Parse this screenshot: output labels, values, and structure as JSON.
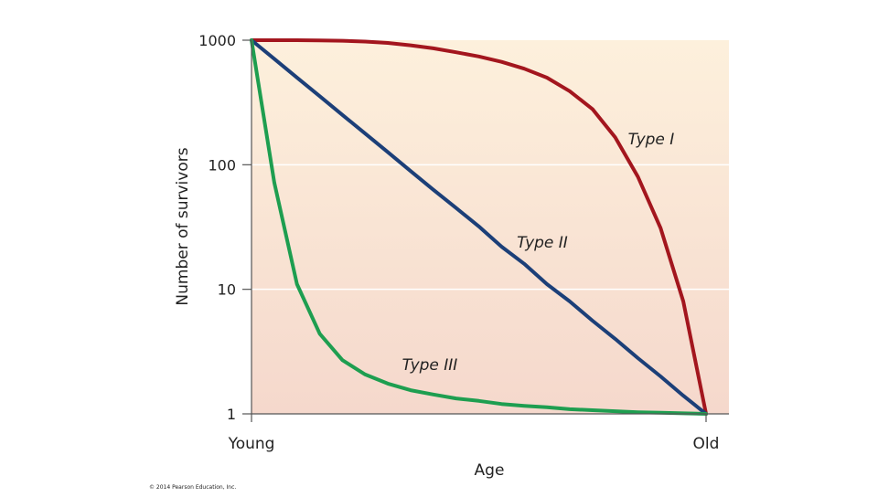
{
  "chart_data": {
    "type": "line",
    "x_label": "Age",
    "y_label": "Number of survivors",
    "credit": "© 2014 Pearson Education, Inc.",
    "categories": [
      "Young",
      null,
      null,
      null,
      null,
      null,
      null,
      null,
      null,
      null,
      null,
      null,
      null,
      null,
      null,
      null,
      null,
      null,
      null,
      null,
      "Old"
    ],
    "log_y": true,
    "ylim": [
      1,
      1000
    ],
    "yticks": [
      1,
      10,
      100,
      1000
    ],
    "grid": true,
    "series": [
      {
        "name": "Type I",
        "color": "#a3161e",
        "values": [
          1000,
          1000,
          1000,
          995,
          990,
          975,
          950,
          910,
          860,
          800,
          740,
          670,
          590,
          500,
          390,
          280,
          166,
          80,
          31,
          8,
          1
        ]
      },
      {
        "name": "Type II",
        "color": "#1c3f78",
        "values": [
          1000,
          708,
          501,
          355,
          251,
          178,
          126,
          89,
          63,
          45,
          32,
          22,
          16,
          11,
          8,
          5.6,
          4,
          2.8,
          2,
          1.4,
          1
        ]
      },
      {
        "name": "Type III",
        "color": "#1e9e50",
        "values": [
          1000,
          72,
          11,
          4.4,
          2.7,
          2.07,
          1.75,
          1.55,
          1.43,
          1.33,
          1.27,
          1.2,
          1.16,
          1.13,
          1.09,
          1.07,
          1.05,
          1.03,
          1.02,
          1.01,
          1
        ]
      }
    ]
  }
}
